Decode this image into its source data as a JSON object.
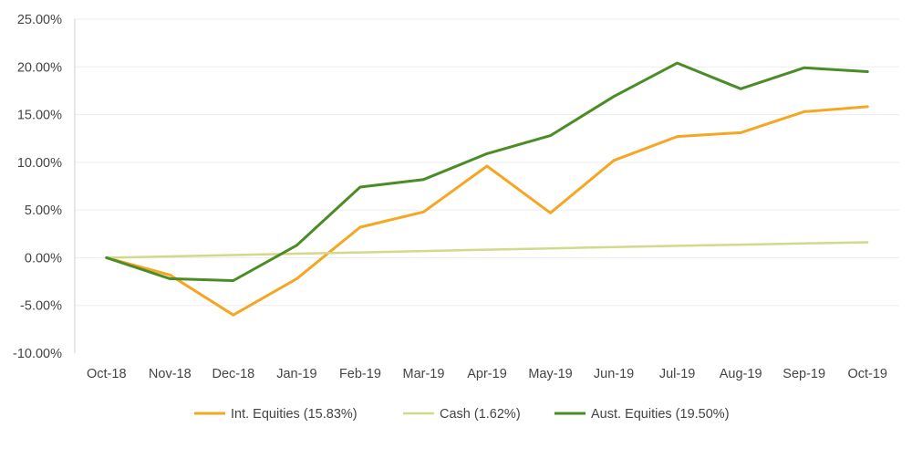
{
  "chart_data": {
    "type": "line",
    "title": "",
    "xlabel": "",
    "ylabel": "",
    "categories": [
      "Oct-18",
      "Nov-18",
      "Dec-18",
      "Jan-19",
      "Feb-19",
      "Mar-19",
      "Apr-19",
      "May-19",
      "Jun-19",
      "Jul-19",
      "Aug-19",
      "Sep-19",
      "Oct-19"
    ],
    "ylim": [
      -10,
      25
    ],
    "yticks": [
      -10,
      -5,
      0,
      5,
      10,
      15,
      20,
      25
    ],
    "ytick_labels": [
      "-10.00%",
      "-5.00%",
      "0.00%",
      "5.00%",
      "10.00%",
      "15.00%",
      "20.00%",
      "25.00%"
    ],
    "grid": true,
    "legend_position": "bottom",
    "series": [
      {
        "name": "Int. Equities (15.83%)",
        "color": "#F5A623",
        "values": [
          0,
          -1.8,
          -6.0,
          -2.2,
          3.2,
          4.8,
          9.6,
          4.7,
          10.2,
          12.7,
          13.1,
          15.3,
          15.83
        ]
      },
      {
        "name": "Cash (1.62%)",
        "color": "#D2D98A",
        "values": [
          0,
          0.14,
          0.28,
          0.42,
          0.56,
          0.7,
          0.84,
          0.98,
          1.12,
          1.25,
          1.37,
          1.5,
          1.62
        ]
      },
      {
        "name": "Aust. Equities (19.50%)",
        "color": "#4A8C25",
        "values": [
          0,
          -2.2,
          -2.4,
          1.3,
          7.4,
          8.2,
          10.9,
          12.8,
          16.9,
          20.4,
          17.7,
          19.9,
          19.5
        ]
      }
    ]
  }
}
